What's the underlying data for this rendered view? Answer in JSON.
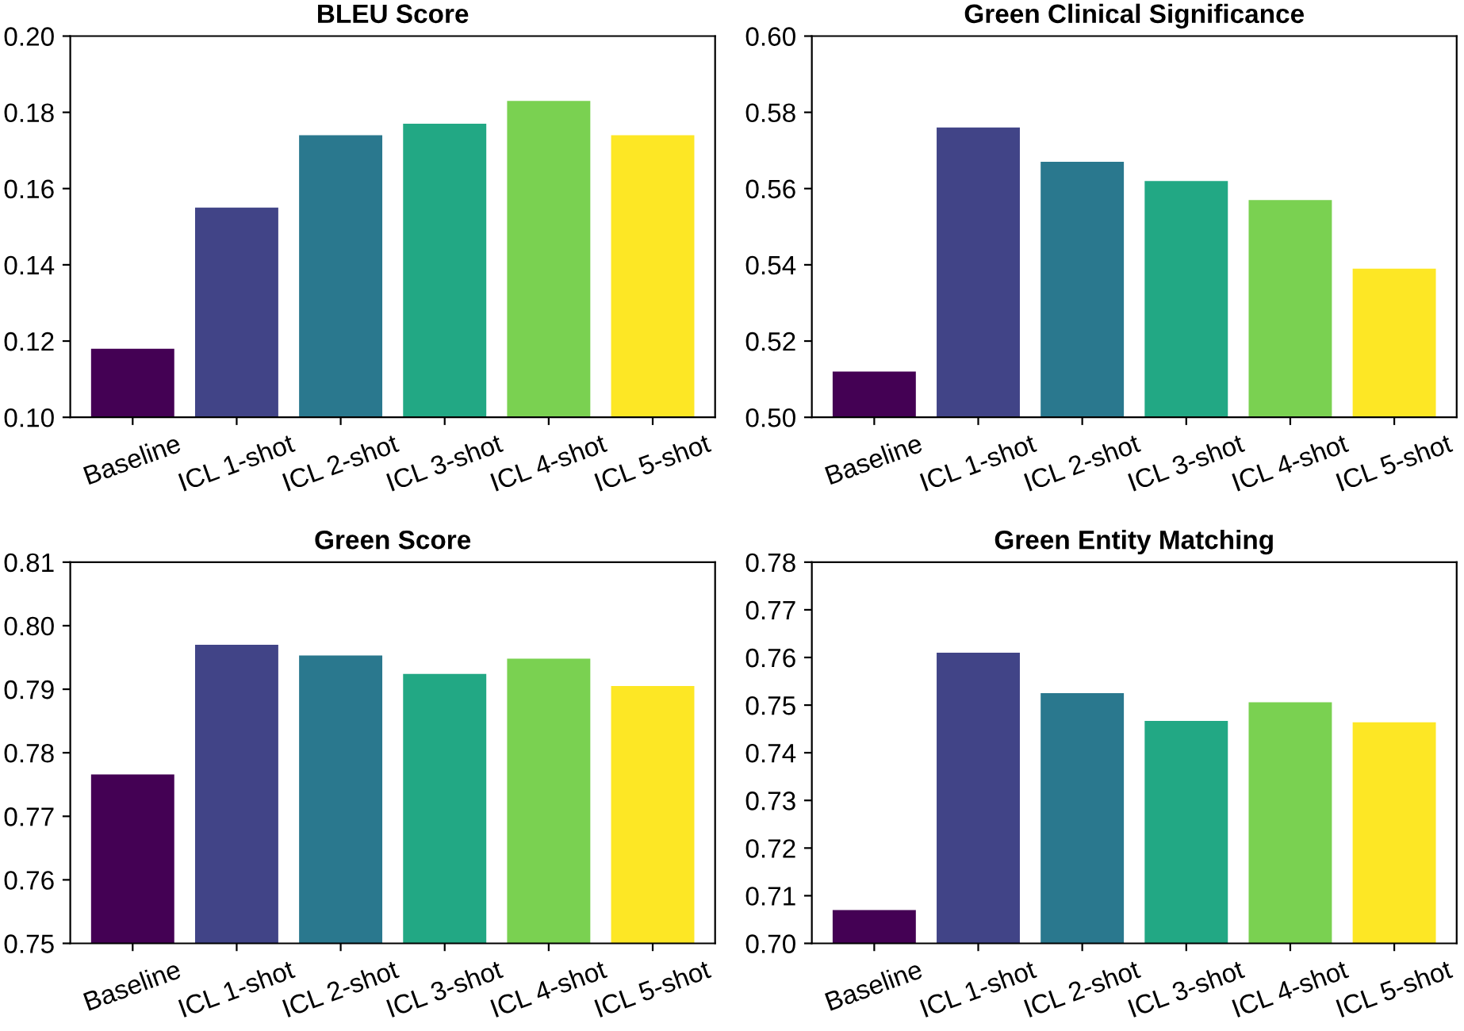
{
  "chart_data": [
    {
      "type": "bar",
      "title": "BLEU Score",
      "categories": [
        "Baseline",
        "ICL 1-shot",
        "ICL 2-shot",
        "ICL 3-shot",
        "ICL 4-shot",
        "ICL 5-shot"
      ],
      "values": [
        0.118,
        0.155,
        0.174,
        0.177,
        0.183,
        0.174
      ],
      "colors": [
        "#440154",
        "#414487",
        "#2a788e",
        "#22a884",
        "#7ad151",
        "#fde725"
      ],
      "ylim": [
        0.1,
        0.2
      ],
      "yticks": [
        {
          "value": 0.1,
          "label": "0.10"
        },
        {
          "value": 0.12,
          "label": "0.12"
        },
        {
          "value": 0.14,
          "label": "0.14"
        },
        {
          "value": 0.16,
          "label": "0.16"
        },
        {
          "value": 0.18,
          "label": "0.18"
        },
        {
          "value": 0.2,
          "label": "0.20"
        }
      ]
    },
    {
      "type": "bar",
      "title": "Green Clinical Significance",
      "categories": [
        "Baseline",
        "ICL 1-shot",
        "ICL 2-shot",
        "ICL 3-shot",
        "ICL 4-shot",
        "ICL 5-shot"
      ],
      "values": [
        0.512,
        0.576,
        0.567,
        0.562,
        0.557,
        0.539
      ],
      "colors": [
        "#440154",
        "#414487",
        "#2a788e",
        "#22a884",
        "#7ad151",
        "#fde725"
      ],
      "ylim": [
        0.5,
        0.6
      ],
      "yticks": [
        {
          "value": 0.5,
          "label": "0.50"
        },
        {
          "value": 0.52,
          "label": "0.52"
        },
        {
          "value": 0.54,
          "label": "0.54"
        },
        {
          "value": 0.56,
          "label": "0.56"
        },
        {
          "value": 0.58,
          "label": "0.58"
        },
        {
          "value": 0.6,
          "label": "0.60"
        }
      ]
    },
    {
      "type": "bar",
      "title": "Green Score",
      "categories": [
        "Baseline",
        "ICL 1-shot",
        "ICL 2-shot",
        "ICL 3-shot",
        "ICL 4-shot",
        "ICL 5-shot"
      ],
      "values": [
        0.7766,
        0.797,
        0.7953,
        0.7924,
        0.7948,
        0.7905
      ],
      "colors": [
        "#440154",
        "#414487",
        "#2a788e",
        "#22a884",
        "#7ad151",
        "#fde725"
      ],
      "ylim": [
        0.75,
        0.81
      ],
      "yticks": [
        {
          "value": 0.75,
          "label": "0.75"
        },
        {
          "value": 0.76,
          "label": "0.76"
        },
        {
          "value": 0.77,
          "label": "0.77"
        },
        {
          "value": 0.78,
          "label": "0.78"
        },
        {
          "value": 0.79,
          "label": "0.79"
        },
        {
          "value": 0.8,
          "label": "0.80"
        },
        {
          "value": 0.81,
          "label": "0.81"
        }
      ]
    },
    {
      "type": "bar",
      "title": "Green Entity Matching",
      "categories": [
        "Baseline",
        "ICL 1-shot",
        "ICL 2-shot",
        "ICL 3-shot",
        "ICL 4-shot",
        "ICL 5-shot"
      ],
      "values": [
        0.707,
        0.761,
        0.7525,
        0.7467,
        0.7506,
        0.7464
      ],
      "colors": [
        "#440154",
        "#414487",
        "#2a788e",
        "#22a884",
        "#7ad151",
        "#fde725"
      ],
      "ylim": [
        0.7,
        0.78
      ],
      "yticks": [
        {
          "value": 0.7,
          "label": "0.70"
        },
        {
          "value": 0.71,
          "label": "0.71"
        },
        {
          "value": 0.72,
          "label": "0.72"
        },
        {
          "value": 0.73,
          "label": "0.73"
        },
        {
          "value": 0.74,
          "label": "0.74"
        },
        {
          "value": 0.75,
          "label": "0.75"
        },
        {
          "value": 0.76,
          "label": "0.76"
        },
        {
          "value": 0.77,
          "label": "0.77"
        },
        {
          "value": 0.78,
          "label": "0.78"
        }
      ]
    }
  ]
}
